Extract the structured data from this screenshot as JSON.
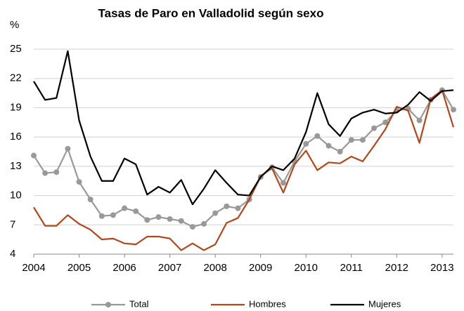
{
  "chart_data": {
    "type": "line",
    "title": "Tasas de Paro en Valladolid según sexo",
    "y_label": "%",
    "x": [
      2004,
      2004.25,
      2004.5,
      2004.75,
      2005,
      2005.25,
      2005.5,
      2005.75,
      2006,
      2006.25,
      2006.5,
      2006.75,
      2007,
      2007.25,
      2007.5,
      2007.75,
      2008,
      2008.25,
      2008.5,
      2008.75,
      2009,
      2009.25,
      2009.5,
      2009.75,
      2010,
      2010.25,
      2010.5,
      2010.75,
      2011,
      2011.25,
      2011.5,
      2011.75,
      2012,
      2012.25,
      2012.5,
      2012.75,
      2013,
      2013.25
    ],
    "xlim": [
      2004,
      2013.25
    ],
    "xticks": [
      2004,
      2005,
      2006,
      2007,
      2008,
      2009,
      2010,
      2011,
      2012,
      2013
    ],
    "ylim": [
      4,
      25
    ],
    "yticks": [
      4,
      7,
      10,
      13,
      16,
      19,
      22,
      25
    ],
    "grid": true,
    "series": [
      {
        "name": "Total",
        "color": "#999999",
        "marker": true,
        "values": [
          14.1,
          12.3,
          12.4,
          14.8,
          11.4,
          9.6,
          7.9,
          8.0,
          8.7,
          8.4,
          7.5,
          7.8,
          7.6,
          7.4,
          6.8,
          7.1,
          8.2,
          8.9,
          8.7,
          9.6,
          11.9,
          12.9,
          11.3,
          13.5,
          15.3,
          16.1,
          15.1,
          14.5,
          15.7,
          15.7,
          16.9,
          17.5,
          18.7,
          18.9,
          17.7,
          19.8,
          20.8,
          18.8
        ]
      },
      {
        "name": "Hombres",
        "color": "#b5461a",
        "marker": false,
        "values": [
          8.8,
          6.9,
          6.9,
          8.0,
          7.1,
          6.5,
          5.5,
          5.6,
          5.1,
          5.0,
          5.8,
          5.8,
          5.6,
          4.4,
          5.1,
          4.4,
          5.0,
          7.2,
          7.7,
          9.6,
          12.0,
          12.8,
          10.3,
          13.2,
          14.6,
          12.6,
          13.4,
          13.3,
          14.0,
          13.5,
          15.1,
          16.8,
          19.1,
          18.7,
          15.4,
          19.9,
          20.8,
          17.0
        ]
      },
      {
        "name": "Mujeres",
        "color": "#000000",
        "marker": false,
        "values": [
          21.7,
          19.8,
          20.0,
          24.8,
          17.7,
          14.0,
          11.5,
          11.5,
          13.8,
          13.2,
          10.1,
          10.9,
          10.3,
          11.6,
          9.1,
          10.7,
          12.6,
          11.3,
          10.1,
          10.0,
          11.9,
          13.0,
          12.6,
          13.8,
          16.5,
          20.5,
          17.3,
          16.1,
          17.9,
          18.5,
          18.8,
          18.4,
          18.5,
          19.3,
          20.6,
          19.7,
          20.7,
          20.8
        ]
      }
    ]
  }
}
